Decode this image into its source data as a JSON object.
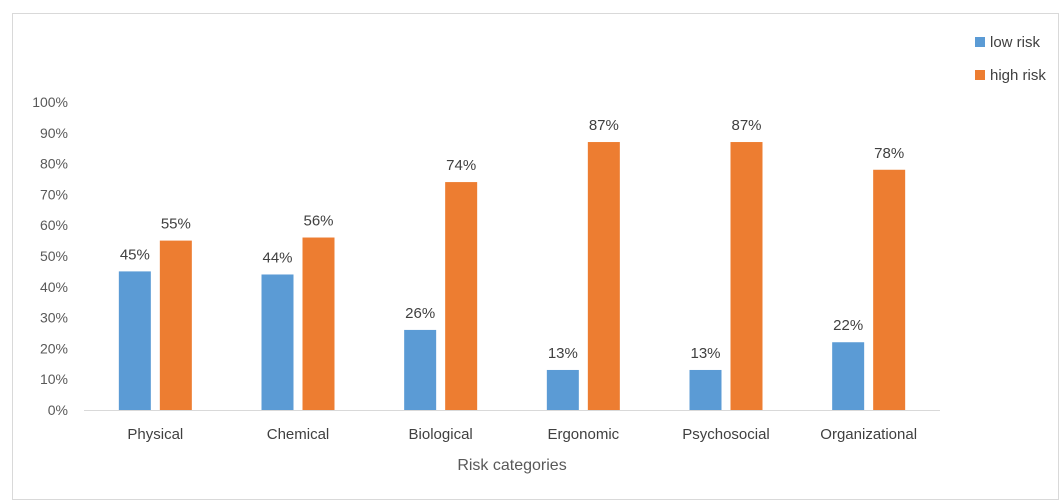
{
  "chart_data": {
    "type": "bar",
    "title": "",
    "xlabel": "Risk categories",
    "ylabel": "",
    "categories": [
      "Physical",
      "Chemical",
      "Biological",
      "Ergonomic",
      "Psychosocial",
      "Organizational"
    ],
    "series": [
      {
        "name": "low risk",
        "color": "#5b9bd5",
        "values": [
          45,
          44,
          26,
          13,
          13,
          22
        ]
      },
      {
        "name": "high risk",
        "color": "#ed7d31",
        "values": [
          55,
          56,
          74,
          87,
          87,
          78
        ]
      }
    ],
    "ylim": [
      0,
      100
    ],
    "yticks": [
      0,
      10,
      20,
      30,
      40,
      50,
      60,
      70,
      80,
      90,
      100
    ],
    "tick_suffix": "%",
    "grid": false,
    "legend_position": "top-right"
  }
}
